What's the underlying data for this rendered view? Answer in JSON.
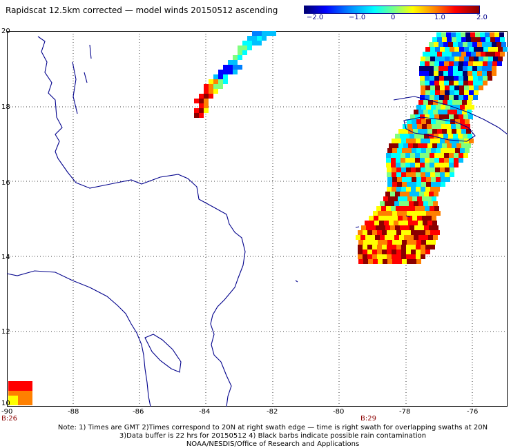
{
  "title": "Rapidscat 12.5km corrected — model winds 20150512 ascending",
  "colorbar": {
    "labels": [
      "−2.0",
      "−1.0",
      "0",
      "1.0",
      "2.0"
    ],
    "colors": [
      "#00006b",
      "#0000ff",
      "#0080ff",
      "#00ffff",
      "#80ff80",
      "#ffff00",
      "#ff8000",
      "#ff0000",
      "#8b0000"
    ],
    "range": [
      -2.0,
      2.0
    ]
  },
  "map": {
    "lat_labels": [
      "20",
      "18",
      "16",
      "14",
      "12",
      "10"
    ],
    "lon_labels": [
      "-90",
      "-88",
      "-86",
      "-84",
      "-82",
      "-80",
      "-78",
      "-76"
    ],
    "gridlines": "dotted",
    "coastline_color": "#00008b"
  },
  "time_labels": [
    "B:26",
    "B:29"
  ],
  "notes": [
    "Note: 1) Times are GMT 2)Times correspond to 20N at right swath edge — time is right swath for overlapping swaths at 20N",
    "3)Data buffer is 22 hrs for 20150512 4) Black barbs indicate possible rain contamination",
    "NOAA/NESDIS/Office of Research and Applications"
  ]
}
